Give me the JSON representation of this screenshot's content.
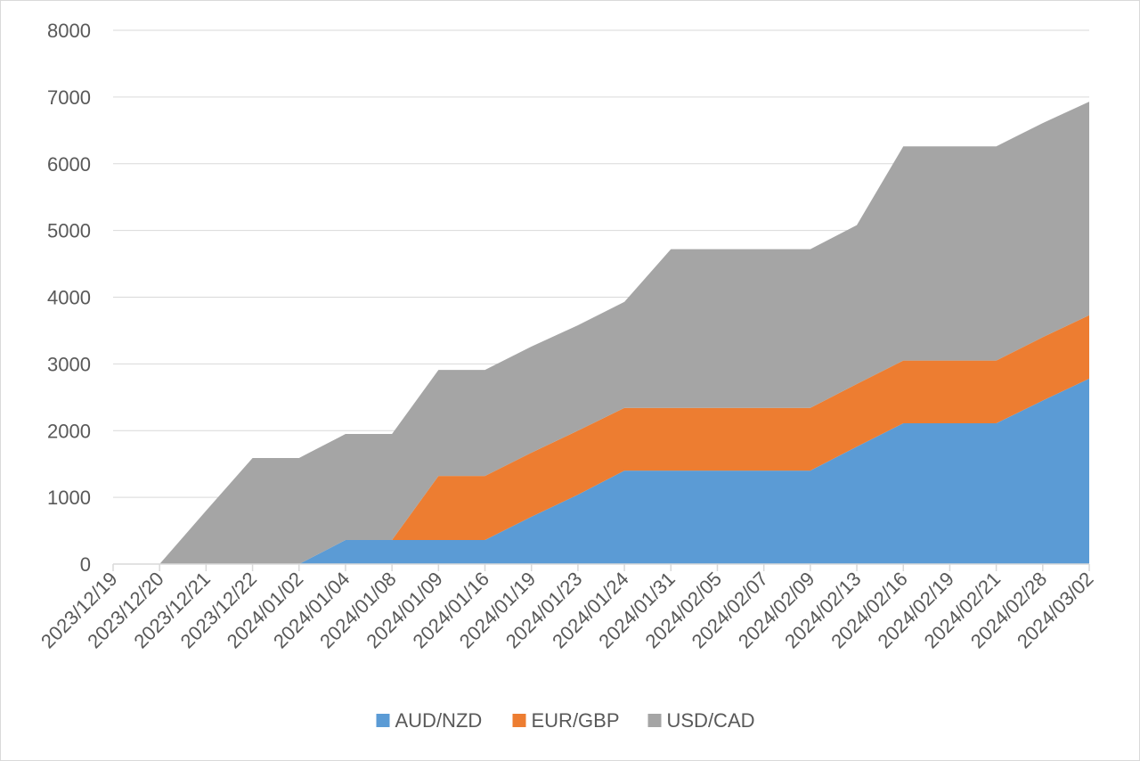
{
  "chart_data": {
    "type": "area",
    "stacked": true,
    "categories": [
      "2023/12/19",
      "2023/12/20",
      "2023/12/21",
      "2023/12/22",
      "2024/01/02",
      "2024/01/04",
      "2024/01/08",
      "2024/01/09",
      "2024/01/16",
      "2024/01/19",
      "2024/01/23",
      "2024/01/24",
      "2024/01/31",
      "2024/02/05",
      "2024/02/07",
      "2024/02/09",
      "2024/02/13",
      "2024/02/16",
      "2024/02/19",
      "2024/02/21",
      "2024/02/28",
      "2024/03/02"
    ],
    "series": [
      {
        "name": "AUD/NZD",
        "color": "#5b9bd5",
        "values": [
          0,
          0,
          0,
          0,
          0,
          360,
          360,
          360,
          360,
          710,
          1040,
          1400,
          1400,
          1400,
          1400,
          1400,
          1760,
          2110,
          2110,
          2110,
          2450,
          2780
        ]
      },
      {
        "name": "EUR/GBP",
        "color": "#ed7d31",
        "values": [
          0,
          0,
          0,
          0,
          0,
          0,
          0,
          960,
          960,
          960,
          960,
          940,
          940,
          940,
          940,
          940,
          940,
          940,
          940,
          940,
          950,
          950
        ]
      },
      {
        "name": "USD/CAD",
        "color": "#a5a5a5",
        "values": [
          0,
          0,
          800,
          1590,
          1590,
          1590,
          1590,
          1590,
          1590,
          1590,
          1580,
          1590,
          2380,
          2380,
          2380,
          2380,
          2380,
          3210,
          3210,
          3210,
          3210,
          3200
        ]
      }
    ],
    "ylim": [
      0,
      8000
    ],
    "yticks": [
      "0",
      "1000",
      "2000",
      "3000",
      "4000",
      "5000",
      "6000",
      "7000",
      "8000"
    ],
    "grid": true,
    "legend_position": "bottom",
    "title": "",
    "xlabel": "",
    "ylabel": ""
  }
}
